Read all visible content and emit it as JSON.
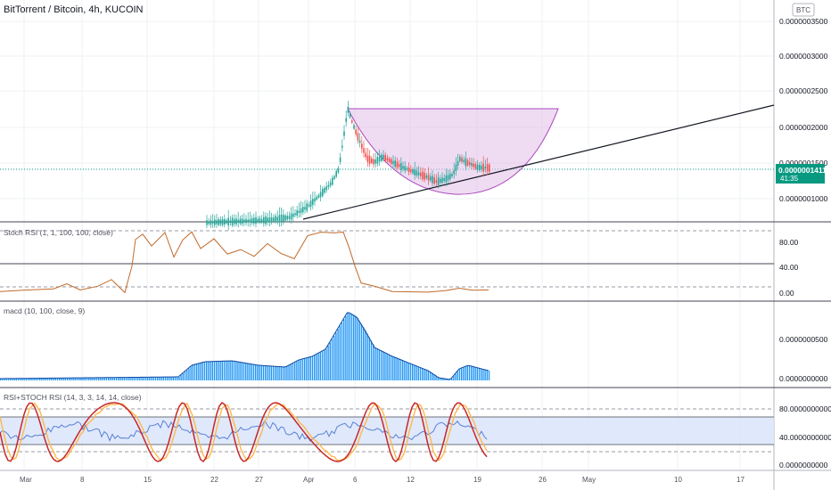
{
  "header": {
    "title": "BitTorrent / Bitcoin, 4h, KUCOIN",
    "currency_badge": "BTC"
  },
  "price_axis": {
    "ticks": [
      "0.0000003500",
      "0.0000003000",
      "0.0000002500",
      "0.0000002000",
      "0.0000001500",
      "0.0000001000"
    ],
    "current_price": "0.0000001411",
    "countdown": "41:35"
  },
  "panes": {
    "stoch_rsi": {
      "title": "Stoch RSI (1, 1, 100, 100, close)",
      "ticks": [
        "80.00",
        "40.00",
        "0.00"
      ]
    },
    "macd": {
      "title": "macd (10, 100, close, 9)",
      "ticks": [
        "0.0000000500",
        "0.0000000000"
      ]
    },
    "rsi_stoch": {
      "title": "RSI+STOCH RSI (14, 3, 3, 14, 14, close)",
      "ticks": [
        "80.0000000000",
        "40.0000000000",
        "0.0000000000"
      ]
    }
  },
  "time_axis": {
    "labels": [
      "Mar",
      "8",
      "15",
      "22",
      "27",
      "Apr",
      "6",
      "12",
      "19",
      "26",
      "May",
      "10",
      "17"
    ]
  },
  "colors": {
    "up": "#26a69a",
    "down": "#ef5350",
    "cup_fill": "#e1bee7",
    "cup_stroke": "#ab47bc",
    "trendline": "#131722",
    "stoch_line": "#c06a2b",
    "macd_hist": "#2196f3",
    "rsi_line": "#5b7fd6",
    "stoch_k": "#c62828",
    "stoch_d": "#ffb74d",
    "band_fill": "#dbe7fb",
    "price_tag_bg": "#089981"
  },
  "chart_data": {
    "type": "candlestick",
    "title": "BitTorrent / Bitcoin, 4h, KUCOIN",
    "x_range": [
      "Mar",
      "May 20"
    ],
    "y_unit": "BTC",
    "ylim": [
      6e-08,
      3.7e-07
    ],
    "last_price": 1.411e-07,
    "key_points": [
      {
        "date": "Apr 1",
        "price": 7e-08
      },
      {
        "date": "Apr 4",
        "price": 2.35e-07
      },
      {
        "date": "Apr 12",
        "price": 1.18e-07
      },
      {
        "date": "Apr 17",
        "price": 1.75e-07
      },
      {
        "date": "Apr 20",
        "price": 1.411e-07
      }
    ],
    "annotations": [
      "cup pattern",
      "ascending trendline"
    ]
  }
}
